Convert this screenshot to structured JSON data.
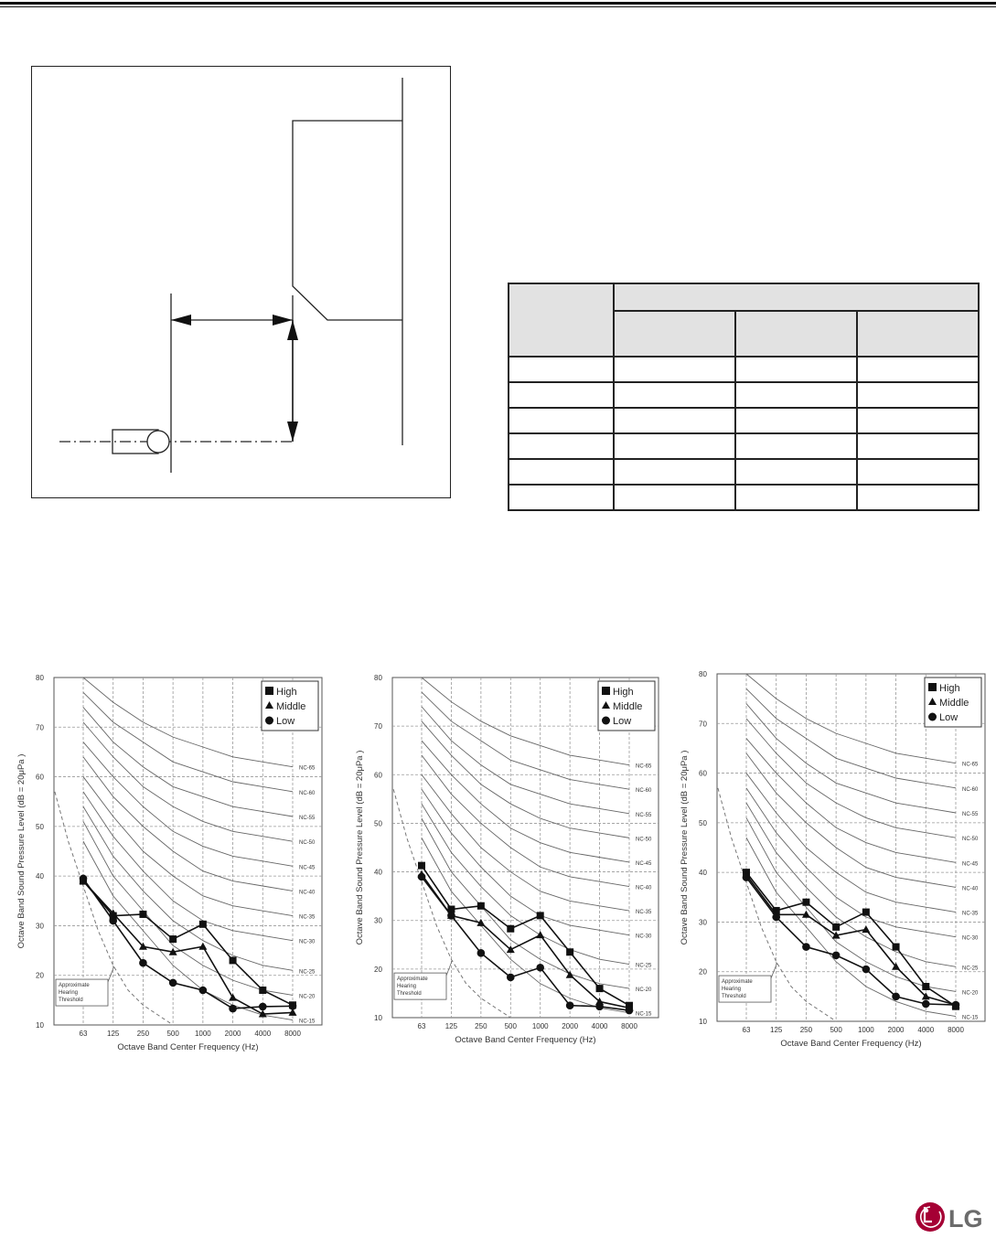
{
  "logo": {
    "text": "LG",
    "color": "#a50034"
  },
  "hearing_threshold_label": [
    "Approximate",
    "Hearing",
    "Threshold"
  ],
  "chart_data": [
    {
      "type": "line",
      "xlabel": "Octave Band Center Frequency (Hz)",
      "ylabel": "Octave Band Sound Pressure Level (dB = 20μPa )",
      "categories": [
        "63",
        "125",
        "250",
        "500",
        "1000",
        "2000",
        "4000",
        "8000"
      ],
      "ylim": [
        10,
        80
      ],
      "yticks": [
        10,
        20,
        30,
        40,
        50,
        60,
        70,
        80
      ],
      "grid": true,
      "legend": "top-right",
      "series": [
        {
          "name": "High",
          "marker": "square",
          "values": [
            39,
            32,
            32.3,
            27.3,
            30.3,
            23,
            17,
            14
          ]
        },
        {
          "name": "Middle",
          "marker": "triangle",
          "values": [
            39,
            32.5,
            25.8,
            24.7,
            25.8,
            15.5,
            12.2,
            12.5
          ]
        },
        {
          "name": "Low",
          "marker": "circle",
          "values": [
            39.5,
            31,
            22.5,
            18.5,
            17,
            13.3,
            13.7,
            13.8
          ]
        }
      ]
    },
    {
      "type": "line",
      "xlabel": "Octave Band Center Frequency (Hz)",
      "ylabel": "Octave Band Sound Pressure Level (dB = 20μPa )",
      "categories": [
        "63",
        "125",
        "250",
        "500",
        "1000",
        "2000",
        "4000",
        "8000"
      ],
      "ylim": [
        10,
        80
      ],
      "yticks": [
        10,
        20,
        30,
        40,
        50,
        60,
        70,
        80
      ],
      "grid": true,
      "legend": "top-right",
      "series": [
        {
          "name": "High",
          "marker": "square",
          "values": [
            41.3,
            32.3,
            33,
            28.3,
            31,
            23.5,
            16,
            12.5
          ]
        },
        {
          "name": "Middle",
          "marker": "triangle",
          "values": [
            39.5,
            31,
            29.5,
            24,
            27,
            18.8,
            13.3,
            12
          ]
        },
        {
          "name": "Low",
          "marker": "circle",
          "values": [
            39,
            31,
            23.3,
            18.3,
            20.3,
            12.5,
            12.3,
            11.5
          ]
        }
      ]
    },
    {
      "type": "line",
      "xlabel": "Octave Band Center Frequency (Hz)",
      "ylabel": "Octave Band Sound Pressure Level (dB = 20μPa )",
      "categories": [
        "63",
        "125",
        "250",
        "500",
        "1000",
        "2000",
        "4000",
        "8000"
      ],
      "ylim": [
        10,
        80
      ],
      "yticks": [
        10,
        20,
        30,
        40,
        50,
        60,
        70,
        80
      ],
      "grid": true,
      "legend": "top-right",
      "series": [
        {
          "name": "High",
          "marker": "square",
          "values": [
            40,
            32.3,
            34,
            29,
            32,
            25,
            17,
            13
          ]
        },
        {
          "name": "Middle",
          "marker": "triangle",
          "values": [
            39.5,
            31.5,
            31.5,
            27.3,
            28.5,
            21,
            15,
            13.3
          ]
        },
        {
          "name": "Low",
          "marker": "circle",
          "values": [
            39,
            31,
            25,
            23.3,
            20.5,
            15,
            13.5,
            13.3
          ]
        }
      ]
    }
  ],
  "nc_curves": [
    {
      "name": "NC-65",
      "values": [
        80,
        75,
        71,
        68,
        66,
        64,
        63,
        62
      ]
    },
    {
      "name": "NC-60",
      "values": [
        77,
        71,
        67,
        63,
        61,
        59,
        58,
        57
      ]
    },
    {
      "name": "NC-55",
      "values": [
        74,
        67,
        62,
        58,
        56,
        54,
        53,
        52
      ]
    },
    {
      "name": "NC-50",
      "values": [
        71,
        64,
        58,
        54,
        51,
        49,
        48,
        47
      ]
    },
    {
      "name": "NC-45",
      "values": [
        67,
        60,
        54,
        49,
        46,
        44,
        43,
        42
      ]
    },
    {
      "name": "NC-40",
      "values": [
        64,
        56,
        50,
        45,
        41,
        39,
        38,
        37
      ]
    },
    {
      "name": "NC-35",
      "values": [
        60,
        52,
        45,
        40,
        36,
        34,
        33,
        32
      ]
    },
    {
      "name": "NC-30",
      "values": [
        57,
        48,
        41,
        35,
        31,
        29,
        28,
        27
      ]
    },
    {
      "name": "NC-25",
      "values": [
        54,
        44,
        37,
        31,
        27,
        24,
        22,
        21
      ]
    },
    {
      "name": "NC-20",
      "values": [
        51,
        40,
        33,
        26,
        22,
        19,
        17,
        16
      ]
    },
    {
      "name": "NC-15",
      "values": [
        47,
        36,
        29,
        22,
        17,
        14,
        12,
        11
      ]
    }
  ]
}
